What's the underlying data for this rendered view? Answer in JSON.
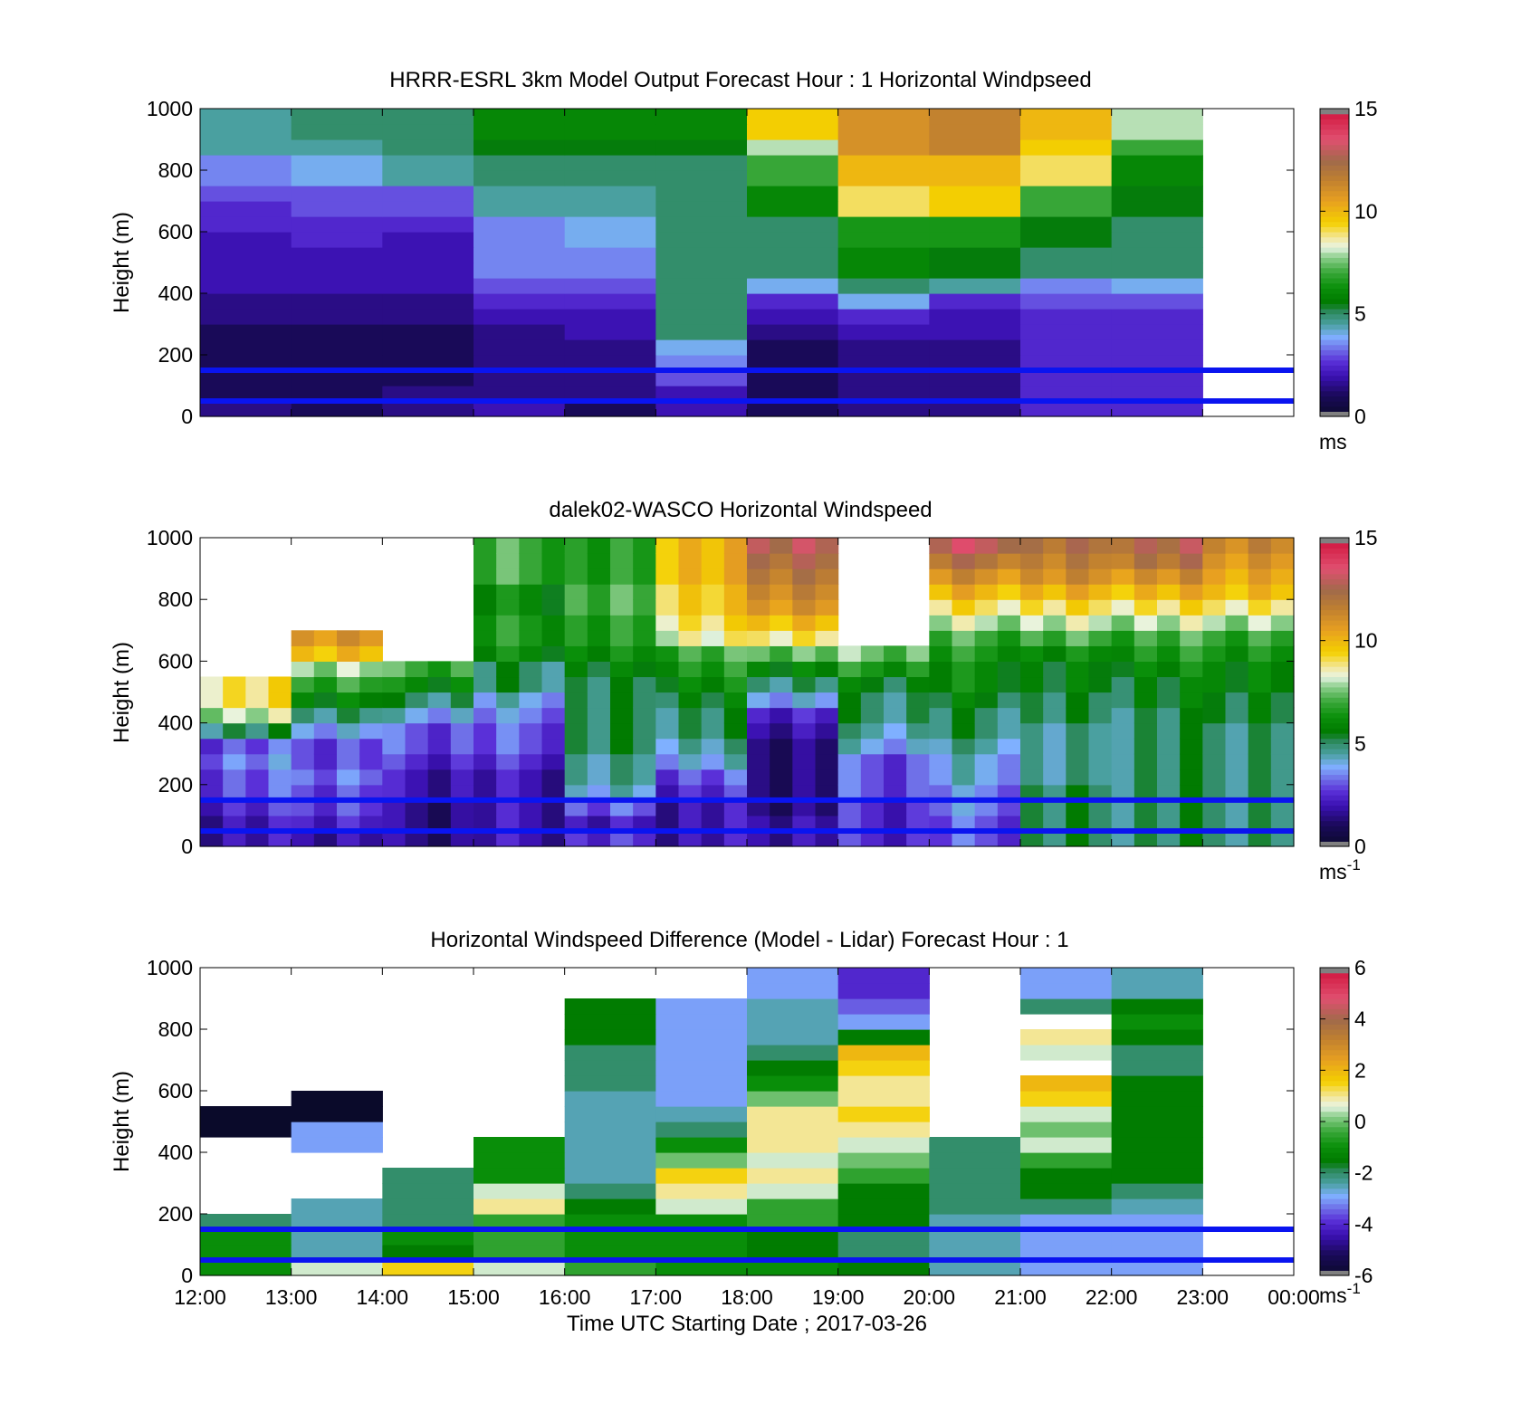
{
  "figure": {
    "xlabel": "Time UTC  Starting Date ; 2017-03-26",
    "x_tick_labels": [
      "12:00",
      "13:00",
      "14:00",
      "15:00",
      "16:00",
      "17:00",
      "18:00",
      "19:00",
      "20:00",
      "21:00",
      "22:00",
      "23:00",
      "00:00"
    ]
  },
  "panels": [
    {
      "title": "HRRR-ESRL 3km Model Output   Forecast Hour : 1 Horizontal Windpseed",
      "ylabel": "Height (m)",
      "y_tick_labels": [
        "0",
        "200",
        "400",
        "600",
        "800",
        "1000"
      ],
      "colorbar": {
        "tick_labels": [
          "0",
          "5",
          "10",
          "15"
        ],
        "unit": "ms",
        "unit_sup": ""
      }
    },
    {
      "title": "dalek02-WASCO  Horizontal Windspeed",
      "ylabel": "Height (m)",
      "y_tick_labels": [
        "0",
        "200",
        "400",
        "600",
        "800",
        "1000"
      ],
      "colorbar": {
        "tick_labels": [
          "0",
          "5",
          "10",
          "15"
        ],
        "unit": "ms",
        "unit_sup": "-1"
      }
    },
    {
      "title": "Horizontal Windspeed Difference (Model - Lidar) Forecast Hour : 1",
      "ylabel": "Height (m)",
      "y_tick_labels": [
        "0",
        "200",
        "400",
        "600",
        "800",
        "1000"
      ],
      "colorbar": {
        "tick_labels": [
          "-6",
          "-4",
          "-2",
          "0",
          "2",
          "4",
          "6"
        ],
        "unit": "ms",
        "unit_sup": "-1"
      }
    }
  ],
  "chart_data": [
    {
      "type": "heatmap",
      "title": "HRRR-ESRL 3km Model Output   Forecast Hour : 1 Horizontal Windpseed",
      "xlabel": "",
      "ylabel": "Height (m)",
      "xlim": [
        "12:00",
        "00:00"
      ],
      "ylim": [
        0,
        1000
      ],
      "time_columns": [
        "12:00",
        "13:00",
        "14:00",
        "15:00",
        "16:00",
        "17:00",
        "18:00",
        "19:00",
        "20:00",
        "21:00",
        "22:00"
      ],
      "heights": [
        25,
        75,
        125,
        175,
        225,
        275,
        325,
        375,
        425,
        475,
        525,
        575,
        625,
        675,
        725,
        775,
        825,
        875,
        925,
        975
      ],
      "values": [
        [
          1.5,
          1.0,
          1.5,
          2.0,
          1.0,
          2.0,
          1.0,
          1.5,
          1.5,
          2.5,
          2.5
        ],
        [
          1.0,
          1.0,
          1.5,
          1.5,
          1.5,
          2.0,
          1.0,
          1.5,
          1.5,
          2.5,
          2.5
        ],
        [
          1.0,
          1.0,
          1.0,
          1.5,
          1.5,
          3.0,
          1.0,
          1.5,
          1.5,
          2.5,
          2.5
        ],
        [
          1.0,
          1.0,
          1.0,
          1.5,
          1.5,
          3.5,
          1.0,
          1.5,
          1.5,
          2.5,
          2.5
        ],
        [
          1.0,
          1.0,
          1.0,
          1.5,
          1.5,
          4.0,
          1.0,
          1.5,
          1.5,
          2.5,
          2.5
        ],
        [
          1.0,
          1.0,
          1.0,
          1.5,
          2.0,
          5.0,
          1.5,
          2.0,
          2.0,
          2.5,
          2.5
        ],
        [
          1.5,
          1.5,
          1.5,
          2.0,
          2.0,
          5.0,
          2.0,
          2.5,
          2.0,
          2.5,
          2.5
        ],
        [
          1.5,
          1.5,
          1.5,
          2.5,
          2.5,
          5.0,
          2.5,
          4.0,
          2.5,
          3.0,
          3.0
        ],
        [
          2.0,
          2.0,
          2.0,
          3.0,
          3.0,
          5.0,
          4.0,
          5.0,
          4.5,
          3.5,
          4.0
        ],
        [
          2.0,
          2.0,
          2.0,
          3.5,
          3.5,
          5.0,
          5.0,
          6.0,
          5.5,
          5.0,
          5.0
        ],
        [
          2.0,
          2.0,
          2.0,
          3.5,
          3.5,
          5.0,
          5.0,
          6.0,
          5.5,
          5.0,
          5.0
        ],
        [
          2.0,
          2.5,
          2.0,
          3.5,
          4.0,
          5.0,
          5.0,
          6.5,
          6.5,
          5.5,
          5.0
        ],
        [
          2.5,
          2.5,
          2.5,
          3.5,
          4.0,
          5.0,
          5.0,
          6.5,
          6.5,
          5.5,
          5.0
        ],
        [
          2.5,
          3.0,
          3.0,
          4.5,
          4.5,
          5.0,
          6.0,
          9.0,
          9.5,
          7.0,
          5.5
        ],
        [
          3.0,
          3.0,
          3.0,
          4.5,
          4.5,
          5.0,
          6.0,
          9.0,
          9.5,
          7.0,
          5.5
        ],
        [
          3.5,
          4.0,
          4.5,
          5.0,
          5.0,
          5.0,
          7.0,
          10.0,
          10.0,
          9.0,
          6.0
        ],
        [
          3.5,
          4.0,
          4.5,
          5.0,
          5.0,
          5.0,
          7.0,
          10.0,
          10.0,
          9.0,
          6.0
        ],
        [
          4.5,
          4.5,
          5.0,
          5.5,
          5.5,
          5.5,
          8.0,
          11.0,
          11.5,
          9.5,
          7.0
        ],
        [
          4.5,
          5.0,
          5.0,
          6.0,
          6.0,
          6.0,
          9.5,
          11.0,
          11.5,
          10.0,
          8.0
        ],
        [
          4.5,
          5.0,
          5.0,
          6.0,
          6.0,
          6.0,
          9.5,
          11.0,
          11.5,
          10.0,
          8.0
        ]
      ],
      "reference_lines_m": [
        50,
        150
      ],
      "colorbar_range": [
        0,
        15
      ],
      "colorbar_unit": "ms"
    },
    {
      "type": "heatmap",
      "title": "dalek02-WASCO  Horizontal Windspeed",
      "xlabel": "",
      "ylabel": "Height (m)",
      "xlim": [
        "12:00",
        "00:00"
      ],
      "ylim": [
        0,
        1000
      ],
      "profile_interval_minutes": 15,
      "heights": [
        25,
        75,
        125,
        175,
        225,
        275,
        325,
        375,
        425,
        475,
        525,
        575,
        625,
        675,
        725,
        775,
        825,
        875,
        925,
        975
      ],
      "hourly_mean_profiles": [
        {
          "time": "12:00",
          "values": [
            2.0,
            2.0,
            2.5,
            3.0,
            3.0,
            3.5,
            3.0,
            5.0,
            8.0,
            9.0,
            9.0,
            null,
            null,
            null,
            null,
            null,
            null,
            null,
            null,
            null
          ]
        },
        {
          "time": "13:00",
          "values": [
            2.0,
            2.5,
            3.0,
            3.0,
            3.5,
            3.0,
            3.0,
            4.0,
            5.0,
            6.0,
            7.0,
            8.0,
            10.0,
            11.0,
            null,
            null,
            null,
            null,
            null,
            null
          ]
        },
        {
          "time": "14:00",
          "values": [
            1.5,
            1.5,
            1.5,
            2.0,
            2.0,
            2.5,
            3.0,
            3.0,
            4.0,
            5.0,
            6.0,
            7.0,
            null,
            null,
            null,
            null,
            null,
            null,
            null,
            null
          ]
        },
        {
          "time": "15:00",
          "values": [
            2.0,
            2.0,
            2.0,
            2.0,
            2.0,
            2.5,
            3.0,
            3.0,
            3.5,
            4.0,
            5.0,
            5.0,
            6.0,
            6.5,
            6.5,
            6.0,
            6.0,
            7.0,
            7.0,
            7.0
          ]
        },
        {
          "time": "16:00",
          "values": [
            2.5,
            2.0,
            3.0,
            4.0,
            4.5,
            4.5,
            5.0,
            5.0,
            5.0,
            5.0,
            5.0,
            5.5,
            6.0,
            6.5,
            6.5,
            7.0,
            7.0,
            6.5,
            6.5,
            6.5
          ]
        },
        {
          "time": "17:00",
          "values": [
            2.0,
            2.0,
            2.0,
            2.5,
            3.0,
            4.0,
            4.5,
            5.0,
            5.0,
            5.5,
            6.0,
            6.5,
            7.0,
            8.5,
            9.0,
            9.5,
            9.5,
            10.0,
            10.0,
            10.0
          ]
        },
        {
          "time": "18:00",
          "values": [
            2.0,
            2.0,
            1.5,
            1.5,
            1.5,
            1.5,
            1.5,
            2.0,
            2.5,
            4.0,
            5.0,
            6.0,
            7.5,
            9.0,
            10.0,
            11.0,
            11.5,
            12.0,
            12.5,
            13.0
          ]
        },
        {
          "time": "19:00",
          "values": [
            2.5,
            2.5,
            2.5,
            3.0,
            3.0,
            3.0,
            4.0,
            4.5,
            5.0,
            5.0,
            5.5,
            6.5,
            7.5,
            null,
            null,
            null,
            null,
            null,
            null,
            null
          ]
        },
        {
          "time": "20:00",
          "values": [
            3.0,
            3.0,
            3.5,
            3.5,
            4.0,
            4.0,
            4.5,
            5.0,
            5.0,
            5.5,
            6.0,
            6.0,
            6.5,
            7.0,
            8.0,
            9.0,
            10.0,
            11.0,
            12.0,
            13.0
          ]
        },
        {
          "time": "21:00",
          "values": [
            5.0,
            5.0,
            5.0,
            5.0,
            4.5,
            4.5,
            4.5,
            4.5,
            5.0,
            5.0,
            5.5,
            5.5,
            6.0,
            7.0,
            8.0,
            9.0,
            10.0,
            11.0,
            11.5,
            12.0
          ]
        },
        {
          "time": "22:00",
          "values": [
            5.0,
            5.0,
            5.0,
            5.0,
            5.0,
            5.0,
            5.0,
            5.0,
            5.0,
            5.5,
            5.5,
            6.0,
            6.5,
            7.0,
            8.0,
            9.0,
            10.0,
            11.0,
            12.0,
            12.5
          ]
        },
        {
          "time": "23:00",
          "values": [
            5.0,
            5.0,
            5.0,
            5.0,
            5.0,
            5.0,
            5.0,
            5.0,
            5.5,
            5.5,
            6.0,
            6.0,
            6.5,
            7.0,
            8.0,
            9.0,
            10.0,
            10.5,
            11.0,
            11.5
          ]
        }
      ],
      "reference_lines_m": [
        50,
        150
      ],
      "colorbar_range": [
        0,
        15
      ],
      "colorbar_unit": "ms-1"
    },
    {
      "type": "heatmap",
      "title": "Horizontal Windspeed Difference (Model - Lidar) Forecast Hour : 1",
      "xlabel": "Time UTC  Starting Date ; 2017-03-26",
      "ylabel": "Height (m)",
      "xlim": [
        "12:00",
        "00:00"
      ],
      "ylim": [
        0,
        1000
      ],
      "time_columns": [
        "12:00",
        "13:00",
        "14:00",
        "15:00",
        "16:00",
        "17:00",
        "18:00",
        "19:00",
        "20:00",
        "21:00",
        "22:00"
      ],
      "heights": [
        25,
        75,
        125,
        175,
        225,
        275,
        325,
        375,
        425,
        475,
        525,
        575,
        625,
        675,
        725,
        775,
        825,
        875,
        925,
        975
      ],
      "values": [
        [
          -1.0,
          0.5,
          1.5,
          0.5,
          -0.5,
          -1.0,
          -1.0,
          -1.5,
          -2.5,
          -3.0,
          -3.0
        ],
        [
          -1.0,
          -2.5,
          -1.5,
          -0.5,
          -1.0,
          -1.0,
          -1.5,
          -2.0,
          -2.5,
          -3.0,
          -3.0
        ],
        [
          -1.0,
          -2.5,
          -1.0,
          -0.5,
          -1.0,
          -1.0,
          -1.5,
          -2.0,
          -2.5,
          -3.0,
          -3.0
        ],
        [
          -2.0,
          -2.5,
          -2.0,
          -0.5,
          -1.0,
          -1.0,
          -0.5,
          -1.5,
          -2.5,
          -3.0,
          -3.0
        ],
        [
          null,
          -2.5,
          -2.0,
          1.0,
          -1.5,
          0.5,
          -0.5,
          -1.5,
          -2.0,
          -2.0,
          -2.5
        ],
        [
          null,
          null,
          -2.0,
          0.5,
          -2.0,
          1.0,
          0.5,
          -1.5,
          -2.0,
          -1.5,
          -2.0
        ],
        [
          null,
          null,
          -2.0,
          -1.0,
          -2.5,
          1.5,
          1.0,
          -0.5,
          -2.0,
          -1.5,
          -1.5
        ],
        [
          null,
          null,
          null,
          -1.0,
          -2.5,
          0.0,
          0.5,
          0.0,
          -2.0,
          -0.5,
          -1.5
        ],
        [
          null,
          -3.0,
          null,
          -1.0,
          -2.5,
          -1.0,
          1.0,
          0.5,
          -2.0,
          0.5,
          -1.5
        ],
        [
          -6.0,
          -3.0,
          null,
          null,
          -2.5,
          -2.0,
          1.0,
          1.0,
          null,
          0.0,
          -1.5
        ],
        [
          -6.0,
          -6.0,
          null,
          null,
          -2.5,
          -2.5,
          1.0,
          1.5,
          null,
          0.5,
          -1.5
        ],
        [
          null,
          -6.0,
          null,
          null,
          -2.5,
          -3.0,
          0.0,
          1.0,
          null,
          1.5,
          -1.5
        ],
        [
          null,
          null,
          null,
          null,
          -2.0,
          -3.0,
          -1.0,
          1.0,
          null,
          2.0,
          -1.5
        ],
        [
          null,
          null,
          null,
          null,
          -2.0,
          -3.0,
          -1.5,
          1.5,
          null,
          null,
          -2.0
        ],
        [
          null,
          null,
          null,
          null,
          -2.0,
          -3.0,
          -2.0,
          2.0,
          null,
          0.5,
          -2.0
        ],
        [
          null,
          null,
          null,
          null,
          -1.5,
          -3.0,
          -2.5,
          -1.5,
          null,
          1.0,
          -1.5
        ],
        [
          null,
          null,
          null,
          null,
          -1.5,
          -3.0,
          -2.5,
          -3.0,
          null,
          null,
          -1.0
        ],
        [
          null,
          null,
          null,
          null,
          -1.5,
          -3.0,
          -2.5,
          -3.5,
          null,
          -2.0,
          -1.5
        ],
        [
          null,
          null,
          null,
          null,
          null,
          null,
          -3.0,
          -4.0,
          null,
          -3.0,
          -2.5
        ],
        [
          null,
          null,
          null,
          null,
          null,
          null,
          -3.0,
          -4.0,
          null,
          -3.0,
          -2.5
        ]
      ],
      "reference_lines_m": [
        50,
        150
      ],
      "colorbar_range": [
        -6,
        6
      ],
      "colorbar_unit": "ms-1"
    }
  ]
}
